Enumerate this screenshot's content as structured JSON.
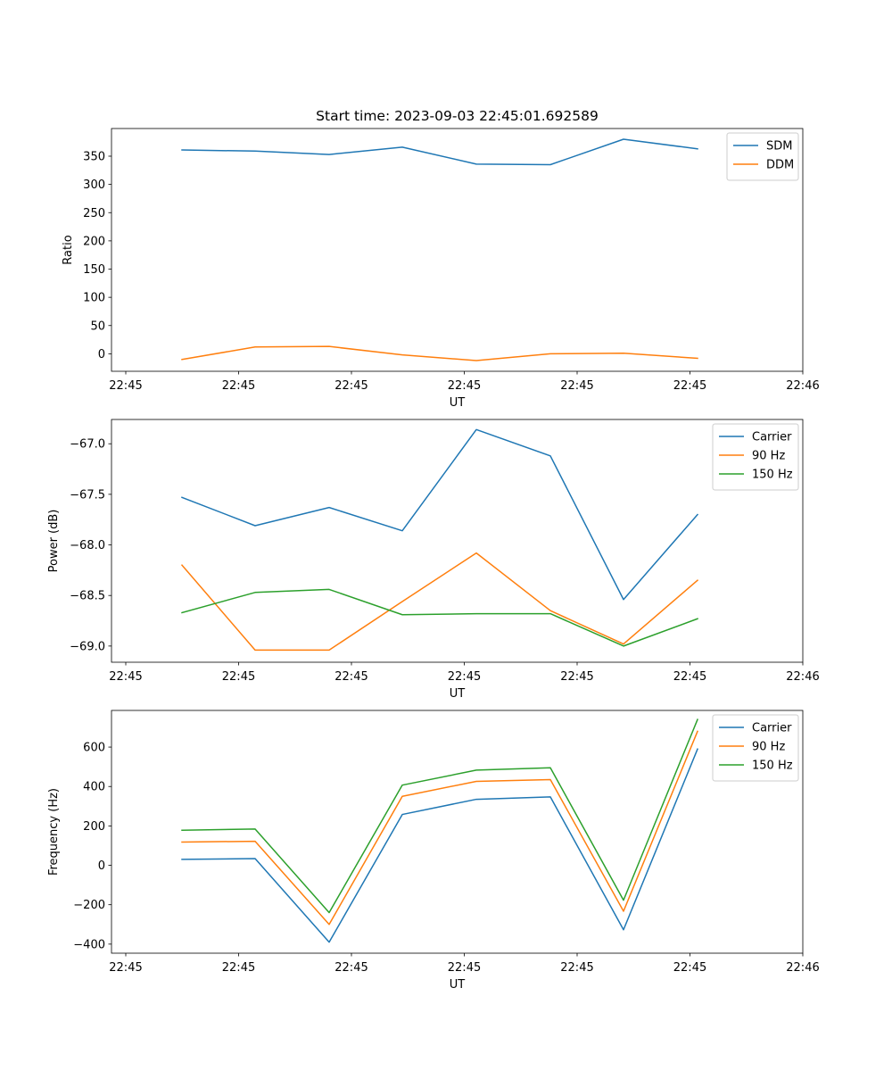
{
  "chart_data": [
    {
      "type": "line",
      "title": "Start time: 2023-09-03 22:45:01.692589",
      "xlabel": "UT",
      "ylabel": "Ratio",
      "x_tick_labels": [
        "22:45",
        "22:45",
        "22:45",
        "22:45",
        "22:45",
        "22:45",
        "22:46"
      ],
      "y_ticks": [
        0,
        50,
        100,
        150,
        200,
        250,
        300,
        350
      ],
      "y_tick_labels": [
        "0",
        "50",
        "100",
        "150",
        "200",
        "250",
        "300",
        "350"
      ],
      "ylim": [
        -31,
        399
      ],
      "legend": "top-right",
      "series": [
        {
          "name": "SDM",
          "color": "#1f77b4",
          "values": [
            361,
            359,
            353,
            366,
            336,
            335,
            380,
            363
          ]
        },
        {
          "name": "DDM",
          "color": "#ff7f0e",
          "values": [
            -10,
            12,
            13,
            -2,
            -12,
            0,
            1,
            -8
          ]
        }
      ]
    },
    {
      "type": "line",
      "title": "",
      "xlabel": "UT",
      "ylabel": "Power (dB)",
      "x_tick_labels": [
        "22:45",
        "22:45",
        "22:45",
        "22:45",
        "22:45",
        "22:45",
        "22:46"
      ],
      "y_ticks": [
        -69.0,
        -68.5,
        -68.0,
        -67.5,
        -67.0
      ],
      "y_tick_labels": [
        "−69.0",
        "−68.5",
        "−68.0",
        "−67.5",
        "−67.0"
      ],
      "ylim": [
        -69.16,
        -66.76
      ],
      "legend": "top-right",
      "series": [
        {
          "name": "Carrier",
          "color": "#1f77b4",
          "values": [
            -67.53,
            -67.81,
            -67.63,
            -67.86,
            -66.86,
            -67.12,
            -68.54,
            -67.7
          ]
        },
        {
          "name": "90 Hz",
          "color": "#ff7f0e",
          "values": [
            -68.2,
            -69.04,
            -69.04,
            -68.56,
            -68.08,
            -68.65,
            -68.98,
            -68.35
          ]
        },
        {
          "name": "150 Hz",
          "color": "#2ca02c",
          "values": [
            -68.67,
            -68.47,
            -68.44,
            -68.69,
            -68.68,
            -68.68,
            -69.0,
            -68.73
          ]
        }
      ]
    },
    {
      "type": "line",
      "title": "",
      "xlabel": "UT",
      "ylabel": "Frequency (Hz)",
      "x_tick_labels": [
        "22:45",
        "22:45",
        "22:45",
        "22:45",
        "22:45",
        "22:45",
        "22:46"
      ],
      "y_ticks": [
        -400,
        -200,
        0,
        200,
        400,
        600
      ],
      "y_tick_labels": [
        "−400",
        "−200",
        "0",
        "200",
        "400",
        "600"
      ],
      "ylim": [
        -446,
        786
      ],
      "legend": "top-right",
      "series": [
        {
          "name": "Carrier",
          "color": "#1f77b4",
          "values": [
            30,
            34,
            -390,
            258,
            335,
            347,
            -327,
            590
          ]
        },
        {
          "name": "90 Hz",
          "color": "#ff7f0e",
          "values": [
            118,
            122,
            -300,
            350,
            426,
            435,
            -233,
            680
          ]
        },
        {
          "name": "150 Hz",
          "color": "#2ca02c",
          "values": [
            178,
            184,
            -240,
            407,
            483,
            495,
            -177,
            740
          ]
        }
      ]
    }
  ]
}
